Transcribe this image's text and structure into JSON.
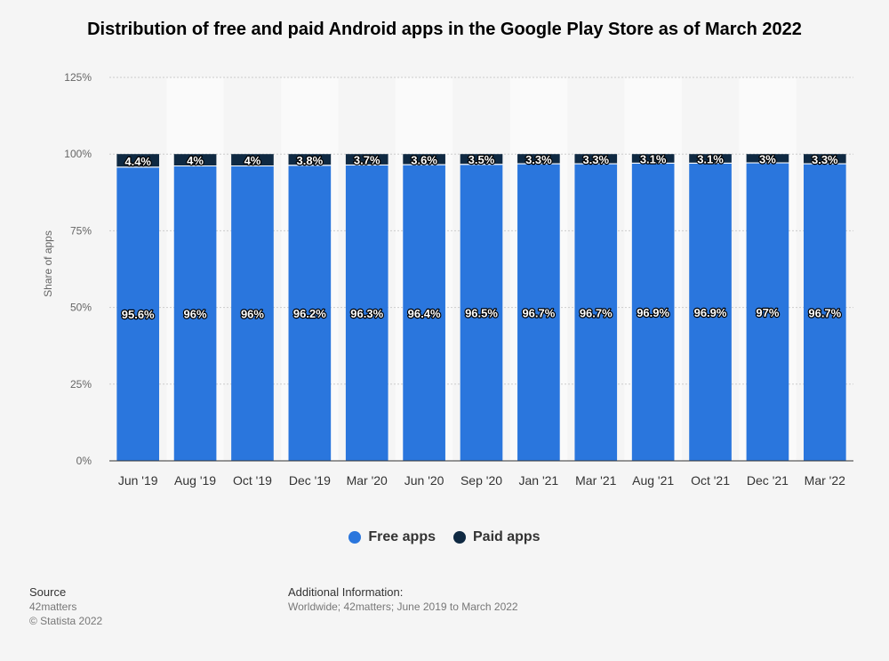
{
  "title": "Distribution of free and paid Android apps in the Google Play Store as of March 2022",
  "colors": {
    "free": "#2a76dd",
    "paid": "#0f2942",
    "band": "#fafafa",
    "grid": "#cccccc"
  },
  "chart_data": {
    "type": "bar",
    "stacked": true,
    "categories": [
      "Jun '19",
      "Aug '19",
      "Oct '19",
      "Dec '19",
      "Mar '20",
      "Jun '20",
      "Sep '20",
      "Jan '21",
      "Mar '21",
      "Aug '21",
      "Oct '21",
      "Dec '21",
      "Mar '22"
    ],
    "series": [
      {
        "name": "Free apps",
        "values": [
          95.6,
          96,
          96,
          96.2,
          96.3,
          96.4,
          96.5,
          96.7,
          96.7,
          96.9,
          96.9,
          97,
          96.7
        ],
        "labels": [
          "95.6%",
          "96%",
          "96%",
          "96.2%",
          "96.3%",
          "96.4%",
          "96.5%",
          "96.7%",
          "96.7%",
          "96.9%",
          "96.9%",
          "97%",
          "96.7%"
        ]
      },
      {
        "name": "Paid apps",
        "values": [
          4.4,
          4,
          4,
          3.8,
          3.7,
          3.6,
          3.5,
          3.3,
          3.3,
          3.1,
          3.1,
          3,
          3.3
        ],
        "labels": [
          "4.4%",
          "4%",
          "4%",
          "3.8%",
          "3.7%",
          "3.6%",
          "3.5%",
          "3.3%",
          "3.3%",
          "3.1%",
          "3.1%",
          "3%",
          "3.3%"
        ]
      }
    ],
    "ylabel": "Share of apps",
    "ylim": [
      0,
      125
    ],
    "yticks": [
      0,
      25,
      50,
      75,
      100,
      125
    ],
    "ytick_labels": [
      "0%",
      "25%",
      "50%",
      "75%",
      "100%",
      "125%"
    ],
    "grid": true,
    "legend": "bottom"
  },
  "legend": [
    {
      "label": "Free apps",
      "color": "#2a76dd"
    },
    {
      "label": "Paid apps",
      "color": "#0f2942"
    }
  ],
  "footer": {
    "source_head": "Source",
    "source_line1": "42matters",
    "source_line2": "© Statista 2022",
    "info_head": "Additional Information:",
    "info_line1": "Worldwide; 42matters; June 2019 to March 2022"
  }
}
